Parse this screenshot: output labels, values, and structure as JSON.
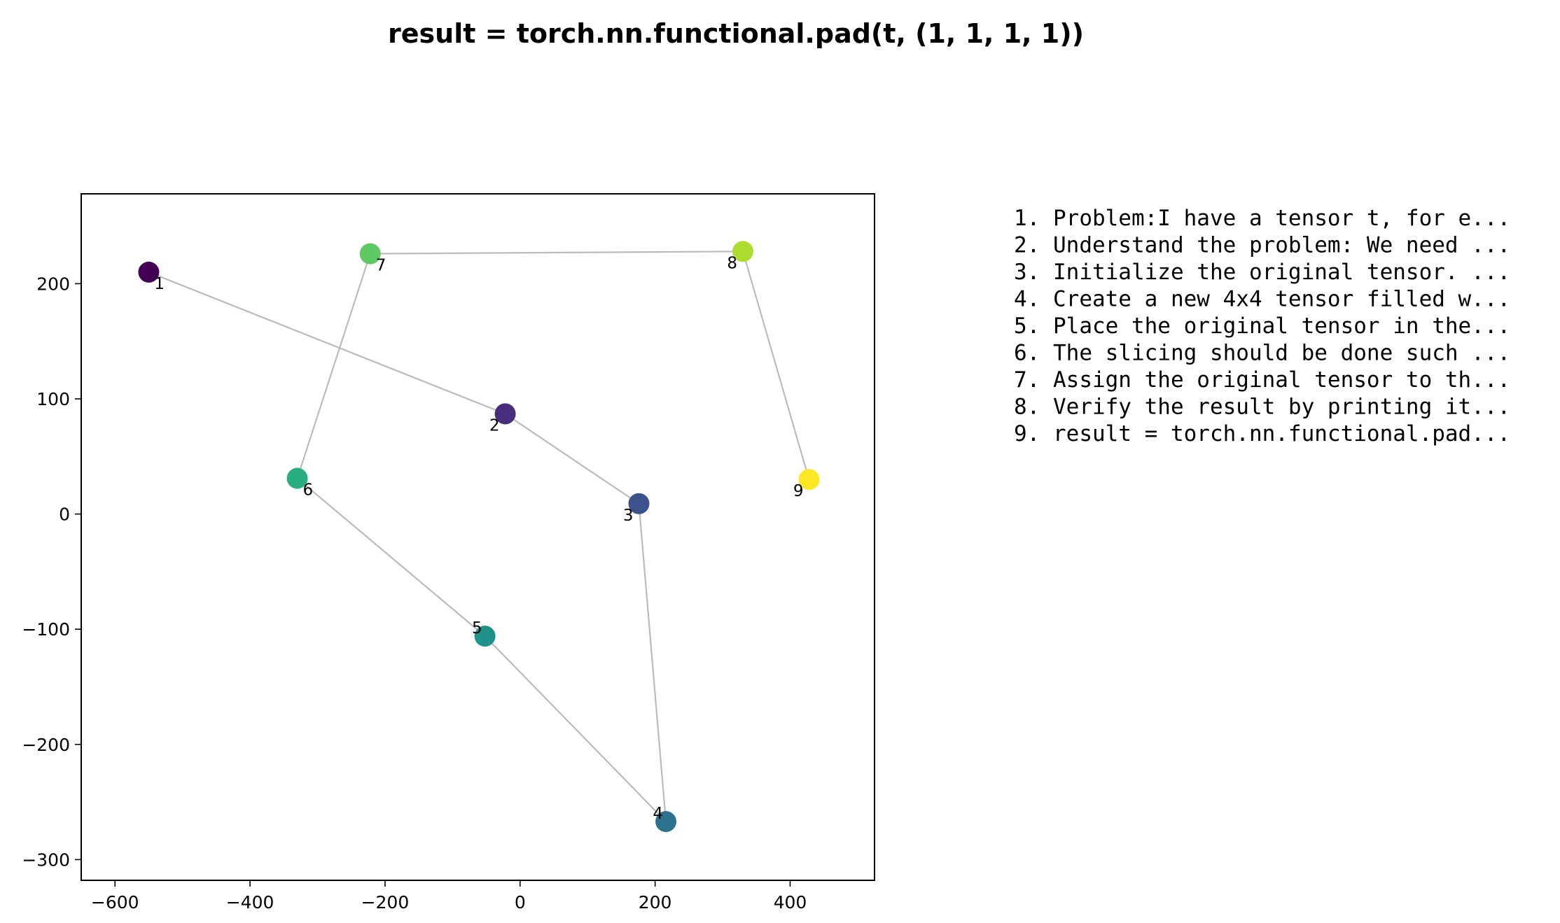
{
  "chart_data": {
    "type": "scatter",
    "title": "result = torch.nn.functional.pad(t, (1, 1, 1, 1))",
    "xlabel": "",
    "ylabel": "",
    "xlim": [
      -650,
      525
    ],
    "ylim": [
      -318,
      278
    ],
    "xticks": [
      -600,
      -400,
      -200,
      0,
      200,
      400
    ],
    "yticks": [
      -300,
      -200,
      -100,
      0,
      100,
      200
    ],
    "xtick_labels": [
      "−600",
      "−400",
      "−200",
      "0",
      "200",
      "400"
    ],
    "ytick_labels": [
      "−300",
      "−200",
      "−100",
      "0",
      "100",
      "200"
    ],
    "grid": false,
    "connected": true,
    "line_color": "#bbbbbb",
    "colormap": "viridis",
    "points": [
      {
        "label": "1",
        "x": -550,
        "y": 210,
        "color": "#440154",
        "label_pos": "below-right"
      },
      {
        "label": "2",
        "x": -22,
        "y": 87,
        "color": "#472d7b",
        "label_pos": "below-left"
      },
      {
        "label": "3",
        "x": 176,
        "y": 9,
        "color": "#3b528b",
        "label_pos": "below-left"
      },
      {
        "label": "4",
        "x": 216,
        "y": -267,
        "color": "#2c728e",
        "label_pos": "above-left"
      },
      {
        "label": "5",
        "x": -52,
        "y": -106,
        "color": "#21918c",
        "label_pos": "above-left"
      },
      {
        "label": "6",
        "x": -330,
        "y": 31,
        "color": "#28ae80",
        "label_pos": "below-right"
      },
      {
        "label": "7",
        "x": -222,
        "y": 226,
        "color": "#5ec962",
        "label_pos": "below-right"
      },
      {
        "label": "8",
        "x": 330,
        "y": 228,
        "color": "#addc30",
        "label_pos": "below-left"
      },
      {
        "label": "9",
        "x": 428,
        "y": 30,
        "color": "#fde725",
        "label_pos": "below-left"
      }
    ],
    "annotations": [
      "1. Problem:I have a tensor t, for e...",
      "2. Understand the problem: We need ...",
      "3. Initialize the original tensor. ...",
      "4. Create a new 4x4 tensor filled w...",
      "5. Place the original tensor in the...",
      "6. The slicing should be done such ...",
      "7. Assign the original tensor to th...",
      "8. Verify the result by printing it...",
      "9. result = torch.nn.functional.pad..."
    ]
  }
}
